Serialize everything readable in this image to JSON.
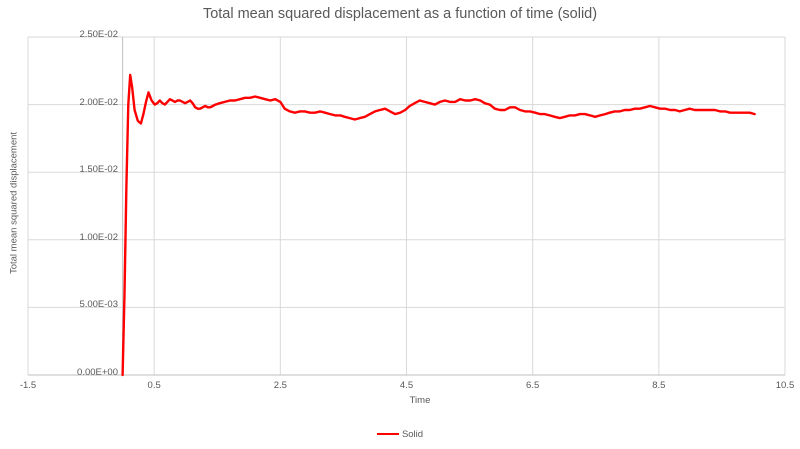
{
  "colors": {
    "series_red": "#FF0000",
    "text_gray": "#595959",
    "gridline_gray": "#D9D9D9",
    "axis_line_gray": "#BFBFBF",
    "background": "#FFFFFF"
  },
  "chart_data": {
    "type": "line",
    "title": "Total mean squared displacement as a function of time (solid)",
    "xlabel": "Time",
    "ylabel": "Total mean squared displacement",
    "xlim": [
      -1.5,
      10.5
    ],
    "ylim": [
      0,
      0.025
    ],
    "grid": true,
    "legend_position": "bottom",
    "x_ticks": [
      {
        "value": -1.5,
        "label": "-1.5"
      },
      {
        "value": 0.5,
        "label": "0.5"
      },
      {
        "value": 2.5,
        "label": "2.5"
      },
      {
        "value": 4.5,
        "label": "4.5"
      },
      {
        "value": 6.5,
        "label": "6.5"
      },
      {
        "value": 8.5,
        "label": "8.5"
      },
      {
        "value": 10.5,
        "label": "10.5"
      }
    ],
    "y_ticks": [
      {
        "value": 0,
        "label": "0.00E+00"
      },
      {
        "value": 0.005,
        "label": "5.00E-03"
      },
      {
        "value": 0.01,
        "label": "1.00E-02"
      },
      {
        "value": 0.015,
        "label": "1.50E-02"
      },
      {
        "value": 0.02,
        "label": "2.00E-02"
      },
      {
        "value": 0.025,
        "label": "2.50E-02"
      }
    ],
    "series": [
      {
        "name": "Solid",
        "color": "#FF0000",
        "points": [
          [
            0.0,
            0.0
          ],
          [
            0.03,
            0.006
          ],
          [
            0.06,
            0.014
          ],
          [
            0.09,
            0.02
          ],
          [
            0.12,
            0.0222
          ],
          [
            0.15,
            0.0213
          ],
          [
            0.19,
            0.0196
          ],
          [
            0.24,
            0.0188
          ],
          [
            0.29,
            0.0186
          ],
          [
            0.33,
            0.0193
          ],
          [
            0.37,
            0.0202
          ],
          [
            0.41,
            0.0209
          ],
          [
            0.46,
            0.0203
          ],
          [
            0.51,
            0.02
          ],
          [
            0.55,
            0.0201
          ],
          [
            0.59,
            0.0203
          ],
          [
            0.63,
            0.0201
          ],
          [
            0.67,
            0.02
          ],
          [
            0.71,
            0.0202
          ],
          [
            0.75,
            0.0204
          ],
          [
            0.79,
            0.0203
          ],
          [
            0.83,
            0.0202
          ],
          [
            0.87,
            0.0203
          ],
          [
            0.91,
            0.0203
          ],
          [
            0.95,
            0.0202
          ],
          [
            0.99,
            0.0201
          ],
          [
            1.03,
            0.0202
          ],
          [
            1.07,
            0.0203
          ],
          [
            1.11,
            0.0201
          ],
          [
            1.15,
            0.0198
          ],
          [
            1.19,
            0.0197
          ],
          [
            1.23,
            0.0197
          ],
          [
            1.27,
            0.0198
          ],
          [
            1.31,
            0.0199
          ],
          [
            1.35,
            0.0198
          ],
          [
            1.39,
            0.0198
          ],
          [
            1.43,
            0.0199
          ],
          [
            1.47,
            0.02
          ],
          [
            1.54,
            0.0201
          ],
          [
            1.62,
            0.0202
          ],
          [
            1.7,
            0.0203
          ],
          [
            1.78,
            0.0203
          ],
          [
            1.86,
            0.0204
          ],
          [
            1.94,
            0.0205
          ],
          [
            2.02,
            0.0205
          ],
          [
            2.1,
            0.0206
          ],
          [
            2.18,
            0.0205
          ],
          [
            2.26,
            0.0204
          ],
          [
            2.34,
            0.0203
          ],
          [
            2.42,
            0.0204
          ],
          [
            2.5,
            0.0202
          ],
          [
            2.57,
            0.0197
          ],
          [
            2.65,
            0.0195
          ],
          [
            2.73,
            0.0194
          ],
          [
            2.81,
            0.0195
          ],
          [
            2.89,
            0.0195
          ],
          [
            2.97,
            0.0194
          ],
          [
            3.05,
            0.0194
          ],
          [
            3.13,
            0.0195
          ],
          [
            3.21,
            0.0194
          ],
          [
            3.29,
            0.0193
          ],
          [
            3.37,
            0.0192
          ],
          [
            3.45,
            0.0192
          ],
          [
            3.52,
            0.0191
          ],
          [
            3.6,
            0.019
          ],
          [
            3.68,
            0.0189
          ],
          [
            3.76,
            0.019
          ],
          [
            3.84,
            0.0191
          ],
          [
            3.92,
            0.0193
          ],
          [
            4.0,
            0.0195
          ],
          [
            4.08,
            0.0196
          ],
          [
            4.16,
            0.0197
          ],
          [
            4.24,
            0.0195
          ],
          [
            4.32,
            0.0193
          ],
          [
            4.4,
            0.0194
          ],
          [
            4.48,
            0.0196
          ],
          [
            4.55,
            0.0199
          ],
          [
            4.63,
            0.0201
          ],
          [
            4.71,
            0.0203
          ],
          [
            4.79,
            0.0202
          ],
          [
            4.87,
            0.0201
          ],
          [
            4.95,
            0.02
          ],
          [
            5.03,
            0.0202
          ],
          [
            5.11,
            0.0203
          ],
          [
            5.19,
            0.0202
          ],
          [
            5.27,
            0.0202
          ],
          [
            5.35,
            0.0204
          ],
          [
            5.43,
            0.0203
          ],
          [
            5.51,
            0.0203
          ],
          [
            5.59,
            0.0204
          ],
          [
            5.67,
            0.0203
          ],
          [
            5.74,
            0.0201
          ],
          [
            5.82,
            0.02
          ],
          [
            5.9,
            0.0197
          ],
          [
            5.98,
            0.0196
          ],
          [
            6.06,
            0.0196
          ],
          [
            6.14,
            0.0198
          ],
          [
            6.22,
            0.0198
          ],
          [
            6.3,
            0.0196
          ],
          [
            6.38,
            0.0195
          ],
          [
            6.46,
            0.0195
          ],
          [
            6.54,
            0.0194
          ],
          [
            6.62,
            0.0193
          ],
          [
            6.69,
            0.0193
          ],
          [
            6.77,
            0.0192
          ],
          [
            6.85,
            0.0191
          ],
          [
            6.93,
            0.019
          ],
          [
            7.01,
            0.0191
          ],
          [
            7.09,
            0.0192
          ],
          [
            7.17,
            0.0192
          ],
          [
            7.25,
            0.0193
          ],
          [
            7.33,
            0.0193
          ],
          [
            7.41,
            0.0192
          ],
          [
            7.49,
            0.0191
          ],
          [
            7.57,
            0.0192
          ],
          [
            7.65,
            0.0193
          ],
          [
            7.72,
            0.0194
          ],
          [
            7.8,
            0.0195
          ],
          [
            7.88,
            0.0195
          ],
          [
            7.96,
            0.0196
          ],
          [
            8.04,
            0.0196
          ],
          [
            8.12,
            0.0197
          ],
          [
            8.2,
            0.0197
          ],
          [
            8.28,
            0.0198
          ],
          [
            8.36,
            0.0199
          ],
          [
            8.44,
            0.0198
          ],
          [
            8.52,
            0.0197
          ],
          [
            8.6,
            0.0197
          ],
          [
            8.68,
            0.0196
          ],
          [
            8.76,
            0.0196
          ],
          [
            8.83,
            0.0195
          ],
          [
            8.91,
            0.0196
          ],
          [
            8.99,
            0.0197
          ],
          [
            9.07,
            0.0196
          ],
          [
            9.15,
            0.0196
          ],
          [
            9.23,
            0.0196
          ],
          [
            9.31,
            0.0196
          ],
          [
            9.39,
            0.0196
          ],
          [
            9.47,
            0.0195
          ],
          [
            9.55,
            0.0195
          ],
          [
            9.63,
            0.0194
          ],
          [
            9.71,
            0.0194
          ],
          [
            9.78,
            0.0194
          ],
          [
            9.86,
            0.0194
          ],
          [
            9.94,
            0.0194
          ],
          [
            10.02,
            0.0193
          ]
        ]
      }
    ]
  }
}
